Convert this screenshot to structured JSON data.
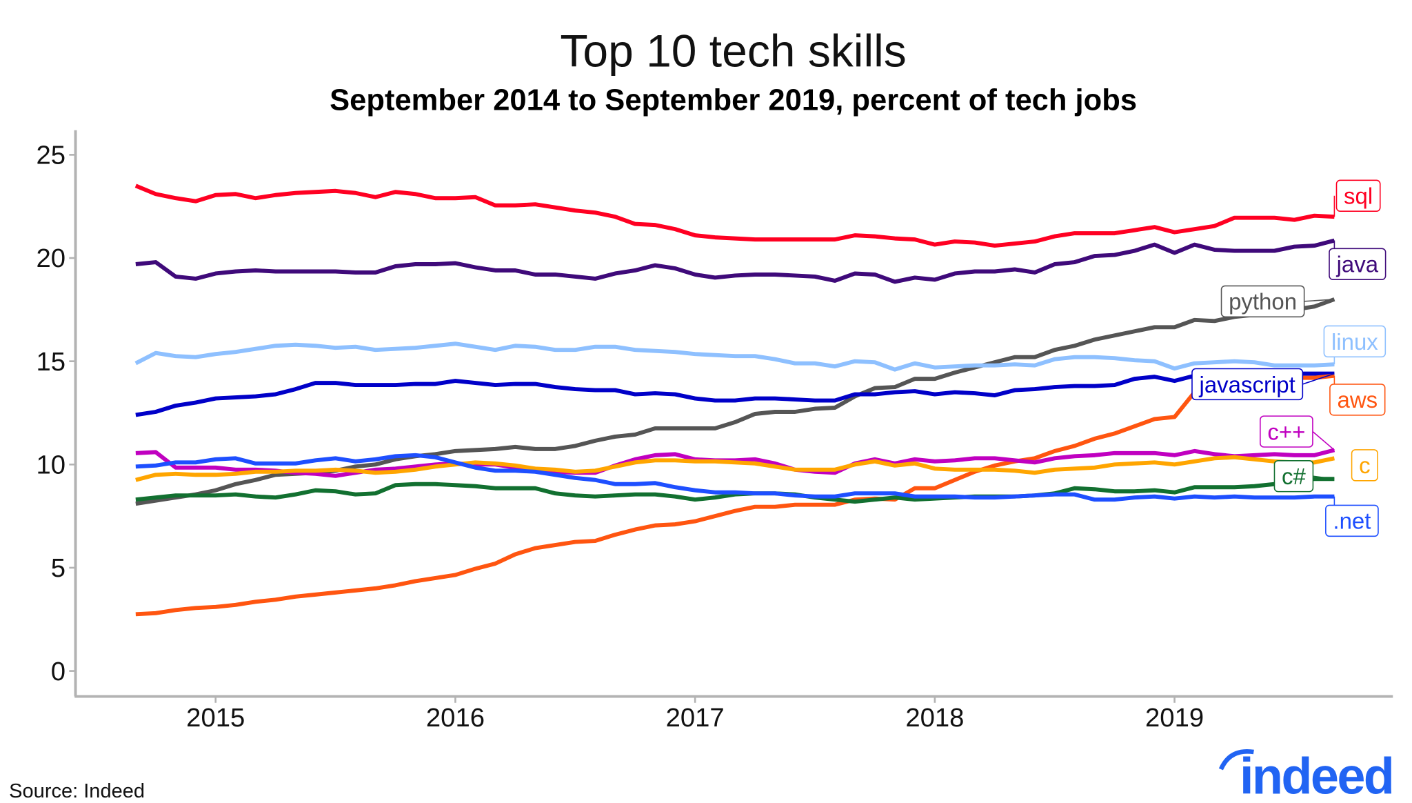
{
  "chart_data": {
    "type": "line",
    "title": "Top 10 tech skills",
    "subtitle": "September 2014 to September 2019, percent of tech jobs",
    "xlabel": "",
    "ylabel": "",
    "x_start": "2014-09",
    "x_end": "2019-09",
    "x_frequency": "monthly",
    "xlim": [
      "2014-07",
      "2019-12"
    ],
    "ylim": [
      -1,
      26
    ],
    "x_ticks": [
      "2015",
      "2016",
      "2017",
      "2018",
      "2019"
    ],
    "y_ticks": [
      "0",
      "5",
      "10",
      "15",
      "20",
      "25"
    ],
    "grid": false,
    "legend": "direct labels at right end of lines",
    "source": "Source: Indeed",
    "logo_text": "indeed",
    "logo_color": "#2164f3",
    "series": [
      {
        "name": "sql",
        "color": "#ff0022",
        "values": [
          23.5,
          23.1,
          22.9,
          22.75,
          23.05,
          23.1,
          22.9,
          23.05,
          23.15,
          23.2,
          23.25,
          23.15,
          22.95,
          23.2,
          23.1,
          22.9,
          22.9,
          22.95,
          22.55,
          22.55,
          22.6,
          22.45,
          22.3,
          22.2,
          22.0,
          21.65,
          21.6,
          21.4,
          21.1,
          21.0,
          20.95,
          20.9,
          20.9,
          20.9,
          20.9,
          20.9,
          21.1,
          21.05,
          20.95,
          20.9,
          20.65,
          20.8,
          20.75,
          20.6,
          20.7,
          20.8,
          21.05,
          21.2,
          21.2,
          21.2,
          21.35,
          21.5,
          21.25,
          21.4,
          21.55,
          21.95,
          21.95,
          21.95,
          21.85,
          22.05,
          22.0
        ]
      },
      {
        "name": "java",
        "color": "#3f0a7a",
        "values": [
          19.7,
          19.8,
          19.1,
          19.0,
          19.25,
          19.35,
          19.4,
          19.35,
          19.35,
          19.35,
          19.35,
          19.3,
          19.3,
          19.6,
          19.7,
          19.7,
          19.75,
          19.55,
          19.4,
          19.4,
          19.2,
          19.2,
          19.1,
          19.0,
          19.25,
          19.4,
          19.65,
          19.5,
          19.2,
          19.05,
          19.15,
          19.2,
          19.2,
          19.15,
          19.1,
          18.9,
          19.25,
          19.2,
          18.85,
          19.05,
          18.95,
          19.25,
          19.35,
          19.35,
          19.45,
          19.3,
          19.7,
          19.8,
          20.1,
          20.15,
          20.35,
          20.65,
          20.25,
          20.65,
          20.4,
          20.35,
          20.35,
          20.35,
          20.55,
          20.6,
          20.85
        ]
      },
      {
        "name": "python",
        "color": "#555555",
        "values": [
          8.1,
          8.25,
          8.4,
          8.55,
          8.75,
          9.05,
          9.25,
          9.5,
          9.55,
          9.6,
          9.7,
          9.9,
          10.0,
          10.25,
          10.4,
          10.5,
          10.65,
          10.7,
          10.75,
          10.85,
          10.75,
          10.75,
          10.9,
          11.15,
          11.35,
          11.45,
          11.75,
          11.75,
          11.75,
          11.75,
          12.05,
          12.45,
          12.55,
          12.55,
          12.7,
          12.75,
          13.3,
          13.7,
          13.75,
          14.15,
          14.15,
          14.45,
          14.7,
          14.95,
          15.2,
          15.2,
          15.55,
          15.75,
          16.05,
          16.25,
          16.45,
          16.65,
          16.65,
          17.0,
          16.95,
          17.15,
          17.25,
          17.35,
          17.5,
          17.65,
          18.0
        ]
      },
      {
        "name": "linux",
        "color": "#8ec0ff",
        "values": [
          14.9,
          15.4,
          15.25,
          15.2,
          15.35,
          15.45,
          15.6,
          15.75,
          15.8,
          15.75,
          15.65,
          15.7,
          15.55,
          15.6,
          15.65,
          15.75,
          15.85,
          15.7,
          15.55,
          15.75,
          15.7,
          15.55,
          15.55,
          15.7,
          15.7,
          15.55,
          15.5,
          15.45,
          15.35,
          15.3,
          15.25,
          15.25,
          15.1,
          14.9,
          14.9,
          14.75,
          15.0,
          14.95,
          14.6,
          14.9,
          14.7,
          14.75,
          14.8,
          14.8,
          14.85,
          14.8,
          15.1,
          15.2,
          15.2,
          15.15,
          15.05,
          15.0,
          14.65,
          14.9,
          14.95,
          15.0,
          14.95,
          14.8,
          14.8,
          14.8,
          14.85
        ]
      },
      {
        "name": "javascript",
        "color": "#0000c8",
        "values": [
          12.4,
          12.55,
          12.85,
          13.0,
          13.2,
          13.25,
          13.3,
          13.4,
          13.65,
          13.95,
          13.95,
          13.85,
          13.85,
          13.85,
          13.9,
          13.9,
          14.05,
          13.95,
          13.85,
          13.9,
          13.9,
          13.75,
          13.65,
          13.6,
          13.6,
          13.4,
          13.45,
          13.4,
          13.2,
          13.1,
          13.1,
          13.2,
          13.2,
          13.15,
          13.1,
          13.1,
          13.4,
          13.4,
          13.5,
          13.55,
          13.4,
          13.5,
          13.45,
          13.35,
          13.6,
          13.65,
          13.75,
          13.8,
          13.8,
          13.85,
          14.15,
          14.25,
          14.05,
          14.3,
          14.35,
          14.4,
          14.45,
          14.45,
          14.4,
          14.4,
          14.4
        ]
      },
      {
        "name": "aws",
        "color": "#ff5510",
        "values": [
          2.75,
          2.8,
          2.95,
          3.05,
          3.1,
          3.2,
          3.35,
          3.45,
          3.6,
          3.7,
          3.8,
          3.9,
          4.0,
          4.15,
          4.35,
          4.5,
          4.65,
          4.95,
          5.2,
          5.65,
          5.95,
          6.1,
          6.25,
          6.3,
          6.6,
          6.85,
          7.05,
          7.1,
          7.25,
          7.5,
          7.75,
          7.95,
          7.95,
          8.05,
          8.05,
          8.05,
          8.3,
          8.35,
          8.3,
          8.85,
          8.85,
          9.25,
          9.65,
          9.95,
          10.15,
          10.3,
          10.65,
          10.9,
          11.25,
          11.5,
          11.85,
          12.2,
          12.3,
          13.5,
          14.0,
          14.1,
          14.15,
          14.15,
          14.2,
          14.2,
          14.3
        ]
      },
      {
        "name": "c++",
        "color": "#c000c0",
        "values": [
          10.55,
          10.6,
          9.85,
          9.85,
          9.85,
          9.75,
          9.75,
          9.7,
          9.6,
          9.55,
          9.45,
          9.6,
          9.75,
          9.8,
          9.9,
          10.0,
          10.05,
          10.0,
          10.0,
          9.85,
          9.75,
          9.65,
          9.6,
          9.6,
          9.95,
          10.25,
          10.45,
          10.5,
          10.25,
          10.2,
          10.2,
          10.25,
          10.05,
          9.75,
          9.65,
          9.6,
          10.05,
          10.25,
          10.05,
          10.25,
          10.15,
          10.2,
          10.3,
          10.3,
          10.2,
          10.1,
          10.3,
          10.4,
          10.45,
          10.55,
          10.55,
          10.55,
          10.45,
          10.65,
          10.5,
          10.4,
          10.45,
          10.5,
          10.45,
          10.45,
          10.7
        ]
      },
      {
        "name": "c",
        "color": "#ffa500",
        "values": [
          9.25,
          9.5,
          9.55,
          9.5,
          9.5,
          9.55,
          9.65,
          9.65,
          9.7,
          9.7,
          9.75,
          9.7,
          9.6,
          9.65,
          9.75,
          9.9,
          10.0,
          10.1,
          10.05,
          9.95,
          9.8,
          9.75,
          9.65,
          9.7,
          9.9,
          10.1,
          10.2,
          10.2,
          10.15,
          10.15,
          10.1,
          10.05,
          9.9,
          9.75,
          9.75,
          9.75,
          10.0,
          10.15,
          9.95,
          10.05,
          9.8,
          9.75,
          9.75,
          9.75,
          9.7,
          9.6,
          9.75,
          9.8,
          9.85,
          10.0,
          10.05,
          10.1,
          10.0,
          10.15,
          10.3,
          10.35,
          10.25,
          10.15,
          10.1,
          10.1,
          10.3
        ]
      },
      {
        "name": "c#",
        "color": "#127030",
        "values": [
          8.3,
          8.4,
          8.5,
          8.5,
          8.5,
          8.55,
          8.45,
          8.4,
          8.55,
          8.75,
          8.7,
          8.55,
          8.6,
          9.0,
          9.05,
          9.05,
          9.0,
          8.95,
          8.85,
          8.85,
          8.85,
          8.6,
          8.5,
          8.45,
          8.5,
          8.55,
          8.55,
          8.45,
          8.3,
          8.4,
          8.55,
          8.6,
          8.6,
          8.55,
          8.4,
          8.3,
          8.2,
          8.3,
          8.4,
          8.3,
          8.35,
          8.4,
          8.45,
          8.45,
          8.45,
          8.5,
          8.6,
          8.85,
          8.8,
          8.7,
          8.7,
          8.75,
          8.65,
          8.9,
          8.9,
          8.9,
          8.95,
          9.05,
          9.2,
          9.3,
          9.3
        ]
      },
      {
        "name": ".net",
        "color": "#1e4fff",
        "values": [
          9.9,
          9.95,
          10.1,
          10.1,
          10.25,
          10.3,
          10.05,
          10.05,
          10.05,
          10.2,
          10.3,
          10.15,
          10.25,
          10.4,
          10.45,
          10.35,
          10.1,
          9.85,
          9.7,
          9.7,
          9.65,
          9.5,
          9.35,
          9.25,
          9.05,
          9.05,
          9.1,
          8.9,
          8.75,
          8.65,
          8.65,
          8.6,
          8.6,
          8.5,
          8.45,
          8.45,
          8.6,
          8.6,
          8.6,
          8.45,
          8.45,
          8.45,
          8.4,
          8.4,
          8.45,
          8.5,
          8.55,
          8.55,
          8.3,
          8.3,
          8.4,
          8.45,
          8.35,
          8.45,
          8.4,
          8.45,
          8.4,
          8.4,
          8.4,
          8.45,
          8.45
        ]
      }
    ]
  }
}
